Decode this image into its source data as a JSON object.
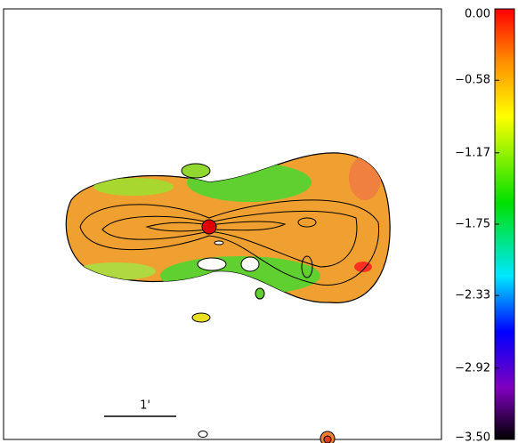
{
  "colorbar": {
    "range": [
      -3.5,
      0
    ],
    "ticks": [
      {
        "value": 0,
        "label": "0.00"
      },
      {
        "value": -0.58,
        "label": "−0.58"
      },
      {
        "value": -1.17,
        "label": "−1.17"
      },
      {
        "value": -1.75,
        "label": "−1.75"
      },
      {
        "value": -2.33,
        "label": "−2.33"
      },
      {
        "value": -2.92,
        "label": "−2.92"
      },
      {
        "value": -3.5,
        "label": "−3.50"
      }
    ]
  },
  "scale_bar": {
    "label": "1'"
  }
}
